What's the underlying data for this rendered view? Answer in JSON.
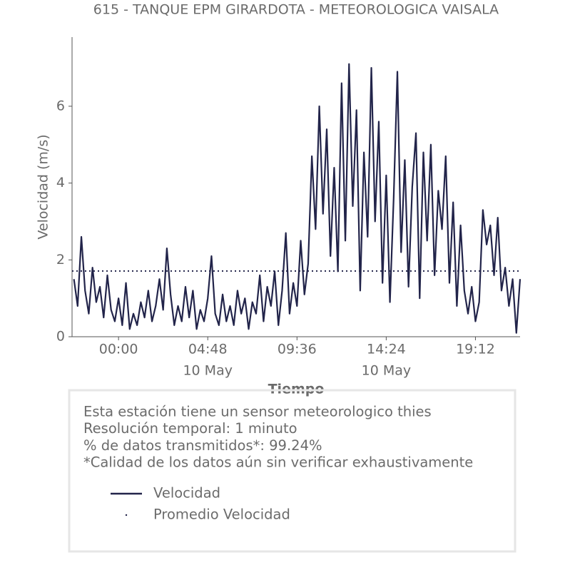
{
  "chart_data": {
    "type": "line",
    "title": "615 - TANQUE EPM GIRARDOTA - METEOROLOGICA VAISALA",
    "x_label": "Tiempo",
    "y_label": "Velocidad (m/s)",
    "x": [
      -2.4,
      -2.2,
      -2.0,
      -1.8,
      -1.6,
      -1.4,
      -1.2,
      -1.0,
      -0.8,
      -0.6,
      -0.4,
      -0.2,
      0.0,
      0.2,
      0.4,
      0.6,
      0.8,
      1.0,
      1.2,
      1.4,
      1.6,
      1.8,
      2.0,
      2.2,
      2.4,
      2.6,
      2.8,
      3.0,
      3.2,
      3.4,
      3.6,
      3.8,
      4.0,
      4.2,
      4.4,
      4.6,
      4.8,
      5.0,
      5.2,
      5.4,
      5.6,
      5.8,
      6.0,
      6.2,
      6.4,
      6.6,
      6.8,
      7.0,
      7.2,
      7.4,
      7.6,
      7.8,
      8.0,
      8.2,
      8.4,
      8.6,
      8.8,
      9.0,
      9.2,
      9.4,
      9.6,
      9.8,
      10.0,
      10.2,
      10.4,
      10.6,
      10.8,
      11.0,
      11.2,
      11.4,
      11.6,
      11.8,
      12.0,
      12.2,
      12.4,
      12.6,
      12.8,
      13.0,
      13.2,
      13.4,
      13.6,
      13.8,
      14.0,
      14.2,
      14.4,
      14.6,
      14.8,
      15.0,
      15.2,
      15.4,
      15.6,
      15.8,
      16.0,
      16.2,
      16.4,
      16.6,
      16.8,
      17.0,
      17.2,
      17.4,
      17.6,
      17.8,
      18.0,
      18.2,
      18.4,
      18.6,
      18.8,
      19.0,
      19.2,
      19.4,
      19.6,
      19.8,
      20.0,
      20.2,
      20.4,
      20.6,
      20.8,
      21.0,
      21.2,
      21.4,
      21.6
    ],
    "series": [
      {
        "name": "Velocidad",
        "color": "#22244a",
        "values": [
          1.5,
          0.8,
          2.6,
          1.2,
          0.6,
          1.8,
          0.9,
          1.3,
          0.5,
          1.6,
          0.7,
          0.4,
          1.0,
          0.3,
          1.4,
          0.2,
          0.6,
          0.3,
          0.9,
          0.5,
          1.2,
          0.4,
          0.8,
          1.5,
          0.7,
          2.3,
          1.1,
          0.3,
          0.8,
          0.4,
          1.3,
          0.5,
          1.2,
          0.2,
          0.7,
          0.4,
          1.0,
          2.1,
          0.6,
          0.3,
          1.1,
          0.4,
          0.8,
          0.3,
          1.2,
          0.6,
          1.0,
          0.2,
          0.9,
          0.6,
          1.6,
          0.4,
          1.3,
          0.8,
          1.7,
          0.3,
          1.2,
          2.7,
          0.6,
          1.4,
          0.8,
          2.5,
          1.1,
          1.9,
          4.7,
          2.8,
          6.0,
          3.2,
          5.4,
          2.1,
          4.4,
          1.7,
          6.6,
          2.5,
          7.1,
          3.4,
          5.9,
          1.2,
          4.8,
          2.6,
          7.0,
          3.0,
          5.6,
          1.4,
          4.2,
          0.9,
          3.6,
          6.9,
          2.2,
          4.6,
          1.3,
          3.9,
          5.3,
          1.0,
          4.8,
          2.5,
          5.0,
          1.6,
          3.8,
          2.8,
          4.7,
          1.4,
          3.5,
          0.8,
          2.9,
          1.2,
          0.6,
          1.3,
          0.4,
          0.9,
          3.3,
          2.4,
          2.9,
          1.6,
          3.1,
          1.2,
          1.8,
          0.8,
          1.5,
          0.1,
          1.5
        ]
      }
    ],
    "hline": {
      "name": "Promedio Velocidad",
      "value": 1.71,
      "color": "#22244a"
    },
    "xlim": [
      -2.5,
      21.6
    ],
    "xticks": [
      {
        "value": 0,
        "label": "00:00"
      },
      {
        "value": 4.8,
        "label": "04:48",
        "date": "10 May"
      },
      {
        "value": 9.6,
        "label": "09:36"
      },
      {
        "value": 14.4,
        "label": "14:24",
        "date": "10 May"
      },
      {
        "value": 19.2,
        "label": "19:12"
      }
    ],
    "ylim": [
      0,
      7.8
    ],
    "yticks": [
      0,
      2,
      4,
      6
    ],
    "notes": [
      "Esta estación tiene un sensor meteorologico thies",
      "Resolución temporal: 1 minuto",
      "% de datos transmitidos*: 99.24%",
      "*Calidad de los datos aún sin verificar exhaustivamente"
    ]
  }
}
